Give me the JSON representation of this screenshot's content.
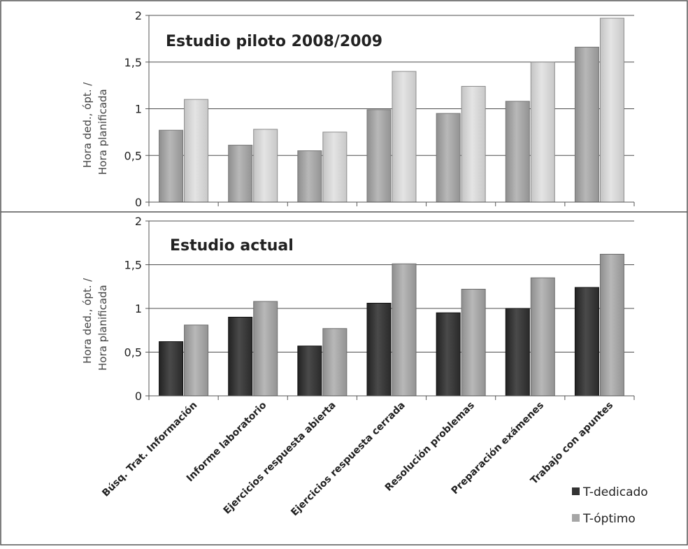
{
  "chart_data": [
    {
      "type": "bar",
      "title": "Estudio piloto 2008/2009",
      "ylabel": "Hora ded., ópt. / Hora planificada",
      "ylim": [
        0,
        2
      ],
      "yticks": [
        "0",
        "0,5",
        "1",
        "1,5",
        "2"
      ],
      "categories": [
        "Búsq. Trat. Información",
        "Informe laboratorio",
        "Ejercicios respuesta abierta",
        "Ejercicios respuesta cerrada",
        "Resolución problemas",
        "Preparación exámenes",
        "Trabajo con apuntes"
      ],
      "series": [
        {
          "values": [
            0.77,
            0.61,
            0.55,
            0.99,
            0.95,
            1.08,
            1.66
          ],
          "color": "#a9a9a9"
        },
        {
          "values": [
            1.1,
            0.78,
            0.75,
            1.4,
            1.24,
            1.5,
            1.97
          ],
          "color": "#d6d6d6"
        }
      ],
      "grid": true
    },
    {
      "type": "bar",
      "title": "Estudio actual",
      "ylabel": "Hora ded., ópt. / Hora planificada",
      "ylim": [
        0,
        2
      ],
      "yticks": [
        "0",
        "0,5",
        "1",
        "1,5",
        "2"
      ],
      "categories": [
        "Búsq. Trat. Información",
        "Informe laboratorio",
        "Ejercicios respuesta abierta",
        "Ejercicios respuesta cerrada",
        "Resolución problemas",
        "Preparación exámenes",
        "Trabajo con apuntes"
      ],
      "series": [
        {
          "name": "T-dedicado",
          "values": [
            0.62,
            0.9,
            0.57,
            1.06,
            0.95,
            1.0,
            1.24
          ],
          "color": "#3a3a3a"
        },
        {
          "name": "T-óptimo",
          "values": [
            0.81,
            1.08,
            0.77,
            1.51,
            1.22,
            1.35,
            1.62
          ],
          "color": "#a6a6a6"
        }
      ],
      "grid": true,
      "legend": "bottom-right"
    }
  ]
}
